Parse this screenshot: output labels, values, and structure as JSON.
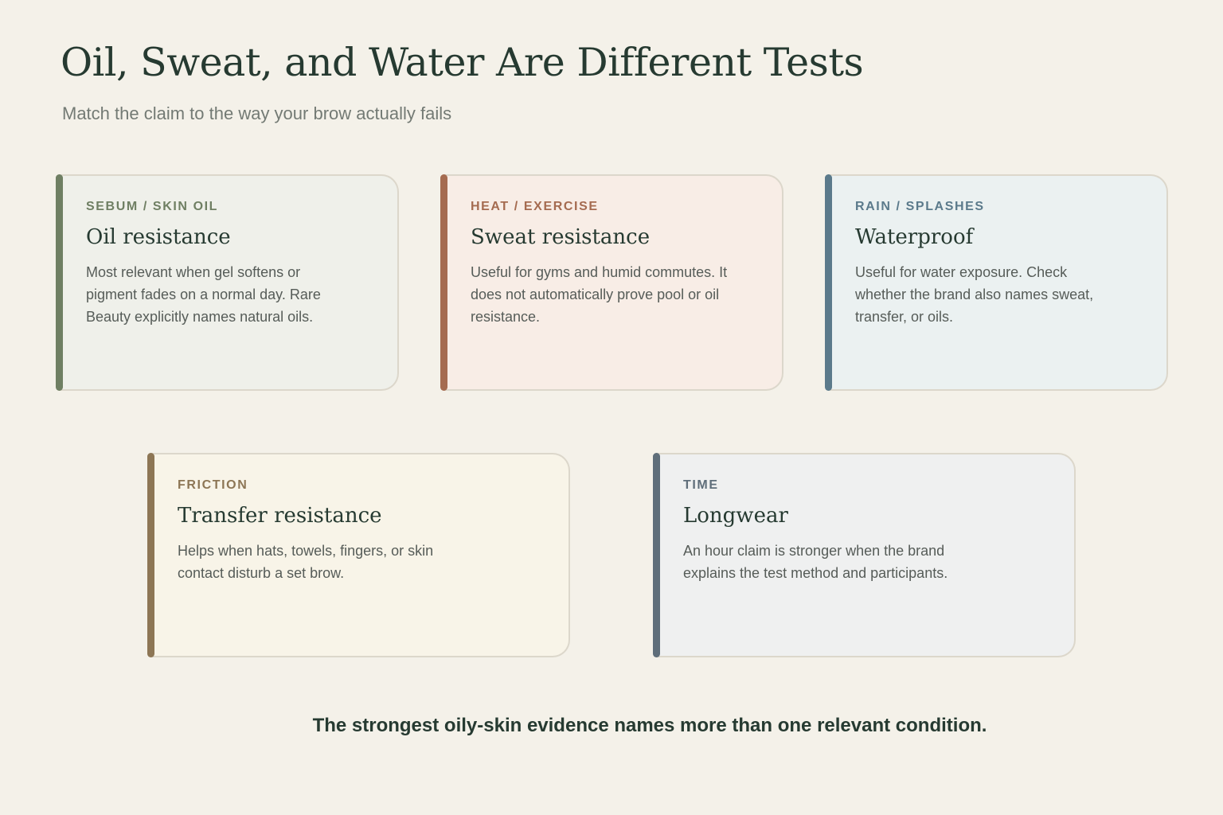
{
  "header": {
    "title": "Oil, Sweat, and Water Are Different Tests",
    "subtitle": "Match the claim to the way your brow actually fails"
  },
  "cards": [
    {
      "tag": "SEBUM / SKIN OIL",
      "heading": "Oil resistance",
      "body": "Most relevant when gel softens or pigment fades on a normal day. Rare Beauty explicitly names natural oils.",
      "accent_color": "#6f7f63"
    },
    {
      "tag": "HEAT / EXERCISE",
      "heading": "Sweat resistance",
      "body": "Useful for gyms and humid commutes. It does not automatically prove pool or oil resistance.",
      "accent_color": "#a56b50"
    },
    {
      "tag": "RAIN / SPLASHES",
      "heading": "Waterproof",
      "body": "Useful for water exposure. Check whether the brand also names sweat, transfer, or oils.",
      "accent_color": "#5b7a8b"
    },
    {
      "tag": "FRICTION",
      "heading": "Transfer resistance",
      "body": "Helps when hats, towels, fingers, or skin contact disturb a set brow.",
      "accent_color": "#8d7655"
    },
    {
      "tag": "TIME",
      "heading": "Longwear",
      "body": "An hour claim is stronger when the brand explains the test method and participants.",
      "accent_color": "#5f6e7a"
    }
  ],
  "footer": {
    "text": "The strongest oily-skin evidence names more than one relevant condition."
  }
}
